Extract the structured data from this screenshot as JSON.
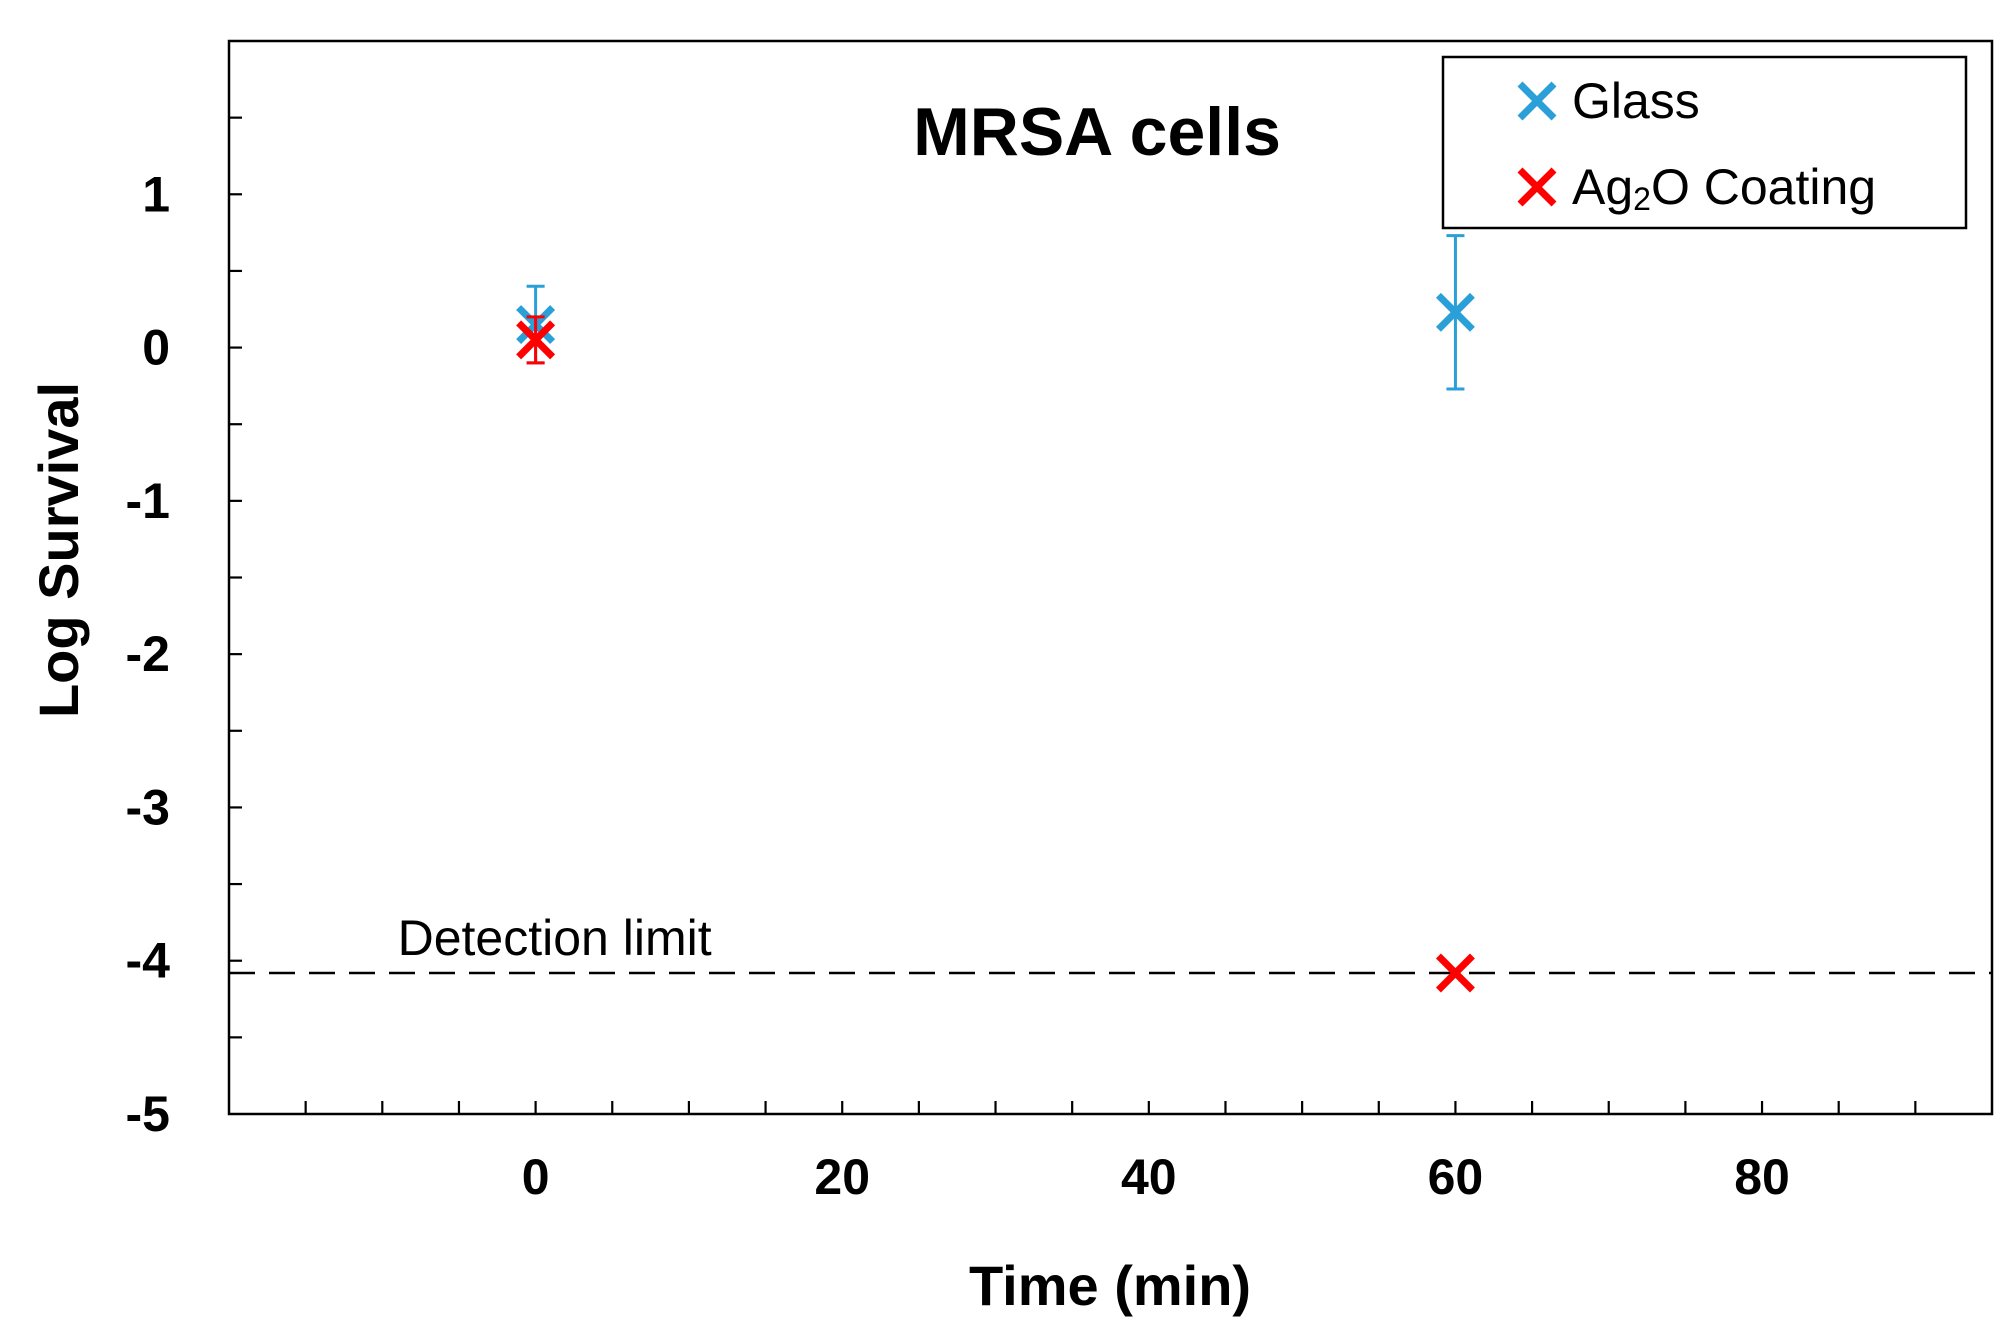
{
  "chart_data": {
    "type": "scatter",
    "title": "MRSA cells",
    "xlabel": "Time (min)",
    "ylabel": "Log Survival",
    "xlim": [
      -20,
      95
    ],
    "ylim": [
      -5,
      2
    ],
    "x_ticks": [
      0,
      20,
      40,
      60,
      80
    ],
    "x_tick_labels": [
      "0",
      "20",
      "40",
      "60",
      "80"
    ],
    "x_minor_step": 5,
    "y_ticks": [
      -5,
      -4,
      -3,
      -2,
      -1,
      0,
      1
    ],
    "y_tick_labels": [
      "-5",
      "-4",
      "-3",
      "-2",
      "-1",
      "0",
      "1"
    ],
    "y_minor_step": 0.5,
    "grid": false,
    "legend_position": "top-right",
    "series": [
      {
        "name": "Glass",
        "legend_label": "Glass",
        "color": "#2a9fd8",
        "marker": "x",
        "points": [
          {
            "x": 0,
            "y": 0.15,
            "err": 0.25
          },
          {
            "x": 60,
            "y": 0.23,
            "err": 0.5
          }
        ]
      },
      {
        "name": "Ag2O Coating",
        "legend_label_main": "Ag",
        "legend_label_sub": "2",
        "legend_label_rest": "O Coating",
        "color": "#ff0000",
        "marker": "x",
        "points": [
          {
            "x": 0,
            "y": 0.05,
            "err": 0.15
          },
          {
            "x": 60,
            "y": -4.08,
            "err": 0
          }
        ]
      }
    ],
    "reference_lines": [
      {
        "label": "Detection limit",
        "y": -4.08,
        "style": "dashed"
      }
    ]
  }
}
